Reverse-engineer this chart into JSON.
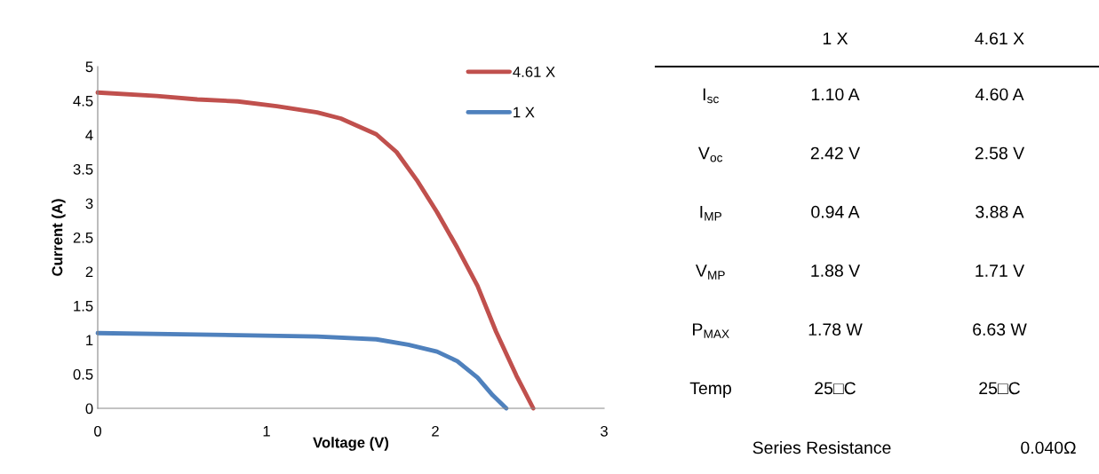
{
  "chart_data": [
    {
      "type": "line",
      "xlabel": "Voltage (V)",
      "ylabel": "Current (A)",
      "xlim": [
        0,
        3
      ],
      "ylim": [
        0,
        5
      ],
      "xticks": [
        0,
        1,
        2,
        3
      ],
      "yticks": [
        0,
        0.5,
        1,
        1.5,
        2,
        2.5,
        3,
        3.5,
        4,
        4.5,
        5
      ],
      "grid": false,
      "legend": "top right",
      "marker": "none",
      "line_style": "solid",
      "series": [
        {
          "name": "4.61 X",
          "color": "#c0504d",
          "x": [
            0,
            0.35,
            0.59,
            0.83,
            1.06,
            1.3,
            1.44,
            1.65,
            1.77,
            1.89,
            2.01,
            2.13,
            2.25,
            2.36,
            2.48,
            2.58
          ],
          "values": [
            4.62,
            4.57,
            4.52,
            4.49,
            4.42,
            4.33,
            4.24,
            4.01,
            3.75,
            3.34,
            2.87,
            2.35,
            1.79,
            1.12,
            0.48,
            0
          ]
        },
        {
          "name": "1 X",
          "color": "#4f81bd",
          "x": [
            0,
            0.59,
            1.3,
            1.65,
            1.84,
            2.01,
            2.13,
            2.25,
            2.34,
            2.42
          ],
          "values": [
            1.1,
            1.08,
            1.05,
            1.01,
            0.93,
            0.83,
            0.69,
            0.45,
            0.19,
            0
          ]
        }
      ]
    },
    {
      "type": "other",
      "categories": [
        "1 X",
        "4.61 X"
      ],
      "y_categories": [
        "I$_{sc}$",
        "V$_{oc}$",
        "I$_{MP}$",
        "V$_{MP}$",
        "P$_{MAX}$",
        "Temp"
      ],
      "cell_labels": [
        [
          "1.10 A",
          "4.60 A"
        ],
        [
          "2.42 V",
          "2.58 V"
        ],
        [
          "0.94 A",
          "3.88 A"
        ],
        [
          "1.88 V",
          "1.71 V"
        ],
        [
          "1.78 W",
          "6.63 W"
        ],
        [
          "25□C",
          "25□C"
        ]
      ],
      "annotations": [
        "Series Resistance",
        "0.040Ω"
      ]
    }
  ]
}
